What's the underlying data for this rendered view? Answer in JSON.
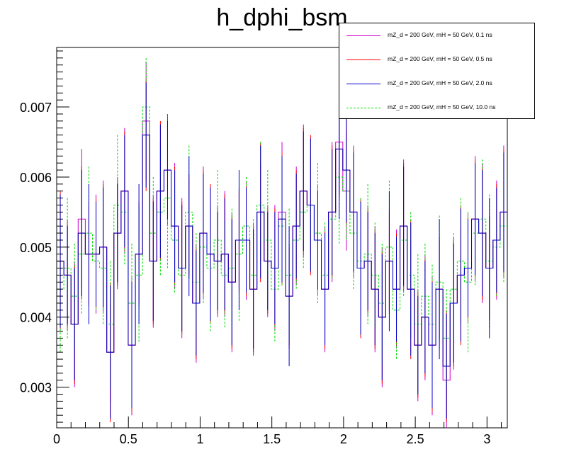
{
  "chart_data": {
    "type": "line",
    "subtype": "histogram-steps-with-error-bars",
    "title": "h_dphi_bsm",
    "xlabel": "",
    "ylabel": "",
    "xlim": [
      0,
      3.1416
    ],
    "ylim": [
      0.00242,
      0.00785
    ],
    "xticks": [
      {
        "value": 0,
        "label": "0"
      },
      {
        "value": 0.5,
        "label": "0.5"
      },
      {
        "value": 1,
        "label": "1"
      },
      {
        "value": 1.5,
        "label": "1.5"
      },
      {
        "value": 2,
        "label": "2"
      },
      {
        "value": 2.5,
        "label": "2.5"
      },
      {
        "value": 3,
        "label": "3"
      }
    ],
    "yticks": [
      {
        "value": 0.003,
        "label": "0.003"
      },
      {
        "value": 0.004,
        "label": "0.004"
      },
      {
        "value": 0.005,
        "label": "0.005"
      },
      {
        "value": 0.006,
        "label": "0.006"
      },
      {
        "value": 0.007,
        "label": "0.007"
      }
    ],
    "bins": 63,
    "legend_position": "top-right",
    "series": [
      {
        "name": "mZ_d = 200 GeV, mH = 50 GeV, 0.1 ns",
        "color": "#cc00cc",
        "style": "solid",
        "values": [
          0.0048,
          0.0046,
          0.0039,
          0.0054,
          0.0049,
          0.0049,
          0.005,
          0.0035,
          0.0052,
          0.0058,
          0.0036,
          0.0049,
          0.0068,
          0.0048,
          0.0058,
          0.0061,
          0.0053,
          0.0047,
          0.0053,
          0.0042,
          0.0052,
          0.0049,
          0.0048,
          0.0049,
          0.0045,
          0.0051,
          0.0051,
          0.0044,
          0.0055,
          0.0048,
          0.0047,
          0.0055,
          0.0043,
          0.0053,
          0.0058,
          0.0056,
          0.0051,
          0.0044,
          0.0055,
          0.0065,
          0.0058,
          0.0055,
          0.0047,
          0.0048,
          0.0044,
          0.004,
          0.0048,
          0.0044,
          0.0053,
          0.0044,
          0.0036,
          0.004,
          0.0036,
          0.0044,
          0.0031,
          0.0042,
          0.0046,
          0.0047,
          0.0054,
          0.0052,
          0.0047,
          0.0051,
          0.0055
        ]
      },
      {
        "name": "mZ_d = 200 GeV, mH = 50 GeV, 0.5 ns",
        "color": "#ff0000",
        "style": "solid",
        "values": [
          0.0048,
          0.0046,
          0.0039,
          0.0052,
          0.0049,
          0.0049,
          0.005,
          0.0035,
          0.0052,
          0.0058,
          0.0036,
          0.0049,
          0.0066,
          0.0048,
          0.0058,
          0.0061,
          0.0053,
          0.0047,
          0.0053,
          0.0042,
          0.0052,
          0.0049,
          0.0048,
          0.0049,
          0.0045,
          0.0051,
          0.0051,
          0.0044,
          0.0055,
          0.0048,
          0.0047,
          0.0054,
          0.0043,
          0.0053,
          0.0058,
          0.0056,
          0.0051,
          0.0044,
          0.0055,
          0.0064,
          0.0061,
          0.0055,
          0.0047,
          0.0048,
          0.0044,
          0.004,
          0.0048,
          0.0044,
          0.0053,
          0.0044,
          0.0036,
          0.004,
          0.0036,
          0.0044,
          0.0033,
          0.0042,
          0.0046,
          0.0047,
          0.0054,
          0.0052,
          0.0047,
          0.0051,
          0.0055
        ]
      },
      {
        "name": "mZ_d = 200 GeV, mH = 50 GeV, 2.0 ns",
        "color": "#0000cc",
        "style": "solid",
        "values": [
          0.0048,
          0.0046,
          0.0039,
          0.0052,
          0.0049,
          0.0049,
          0.005,
          0.0035,
          0.0052,
          0.0058,
          0.0036,
          0.0049,
          0.0066,
          0.0048,
          0.0058,
          0.0061,
          0.0053,
          0.0047,
          0.0053,
          0.0042,
          0.0052,
          0.0049,
          0.0048,
          0.0049,
          0.0045,
          0.0051,
          0.0051,
          0.0044,
          0.0055,
          0.0048,
          0.0047,
          0.0054,
          0.0043,
          0.0053,
          0.0058,
          0.0056,
          0.0051,
          0.0044,
          0.0055,
          0.0064,
          0.0061,
          0.0055,
          0.0047,
          0.0048,
          0.0044,
          0.004,
          0.0048,
          0.0044,
          0.0053,
          0.0044,
          0.0036,
          0.004,
          0.0036,
          0.0044,
          0.0033,
          0.0042,
          0.0046,
          0.0047,
          0.0054,
          0.0052,
          0.0047,
          0.0051,
          0.0055
        ]
      },
      {
        "name": "mZ_d = 200 GeV, mH = 50 GeV, 10.0 ns",
        "color": "#00dd00",
        "style": "dashed",
        "values": [
          0.0044,
          0.0047,
          0.0043,
          0.0049,
          0.0052,
          0.0048,
          0.0047,
          0.0039,
          0.0056,
          0.0055,
          0.0042,
          0.0046,
          0.007,
          0.0052,
          0.0055,
          0.0057,
          0.0051,
          0.0046,
          0.0055,
          0.0045,
          0.005,
          0.0047,
          0.0051,
          0.0046,
          0.0047,
          0.0049,
          0.0053,
          0.0046,
          0.0056,
          0.0051,
          0.0044,
          0.0053,
          0.0046,
          0.0051,
          0.0055,
          0.0056,
          0.0052,
          0.0046,
          0.0054,
          0.006,
          0.0058,
          0.0052,
          0.0048,
          0.0049,
          0.0046,
          0.0042,
          0.005,
          0.0041,
          0.0051,
          0.0046,
          0.0039,
          0.0043,
          0.0039,
          0.0045,
          0.0037,
          0.0044,
          0.0048,
          0.0045,
          0.0052,
          0.0054,
          0.0048,
          0.005,
          0.0053
        ]
      }
    ]
  }
}
